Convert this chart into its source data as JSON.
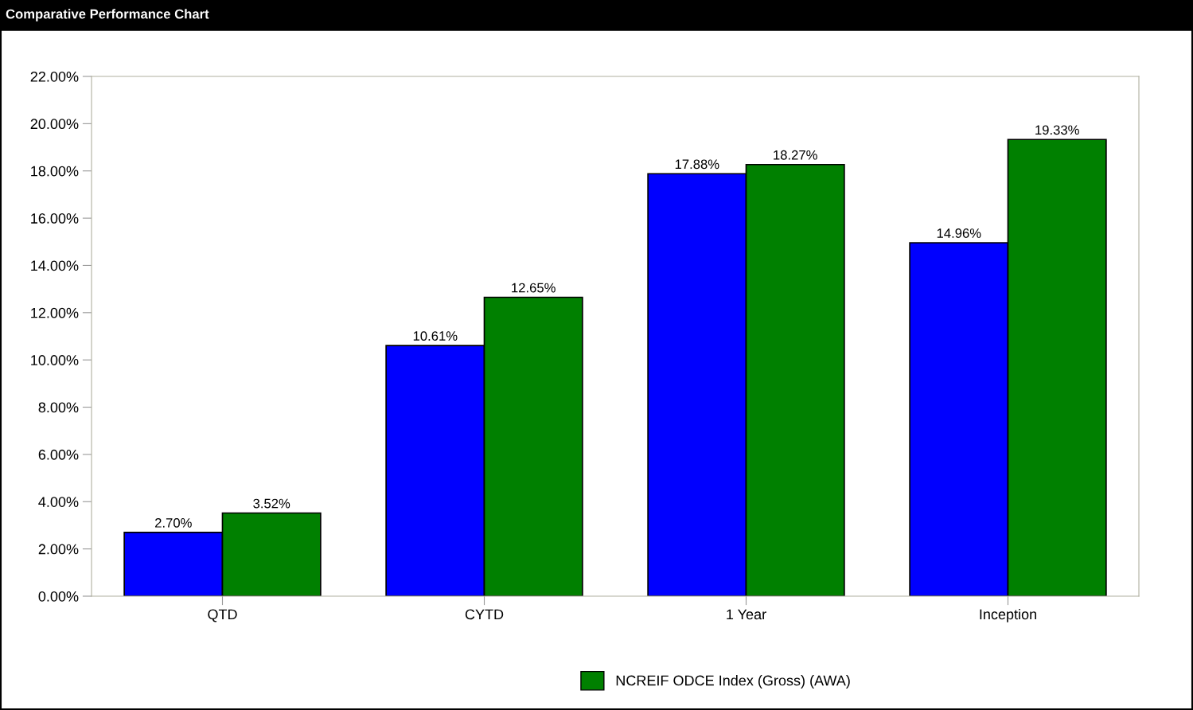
{
  "chart_data": {
    "type": "bar",
    "title": "Comparative Performance Chart",
    "categories": [
      "QTD",
      "CYTD",
      "1 Year",
      "Inception"
    ],
    "series": [
      {
        "color": "#0000ff",
        "values": [
          2.7,
          10.61,
          17.88,
          14.96
        ],
        "value_labels": [
          "2.70%",
          "10.61%",
          "17.88%",
          "14.96%"
        ]
      },
      {
        "name": "NCREIF ODCE Index (Gross) (AWA)",
        "color": "#008000",
        "values": [
          3.52,
          12.65,
          18.27,
          19.33
        ],
        "value_labels": [
          "3.52%",
          "12.65%",
          "18.27%",
          "19.33%"
        ]
      }
    ],
    "ylim": [
      0,
      22
    ],
    "yticks": [
      {
        "value": 0,
        "label": "0.00%"
      },
      {
        "value": 2,
        "label": "2.00%"
      },
      {
        "value": 4,
        "label": "4.00%"
      },
      {
        "value": 6,
        "label": "6.00%"
      },
      {
        "value": 8,
        "label": "8.00%"
      },
      {
        "value": 10,
        "label": "10.00%"
      },
      {
        "value": 12,
        "label": "12.00%"
      },
      {
        "value": 14,
        "label": "14.00%"
      },
      {
        "value": 16,
        "label": "16.00%"
      },
      {
        "value": 18,
        "label": "18.00%"
      },
      {
        "value": 20,
        "label": "20.00%"
      },
      {
        "value": 22,
        "label": "22.00%"
      }
    ],
    "grid": false,
    "legend": "bottom"
  }
}
